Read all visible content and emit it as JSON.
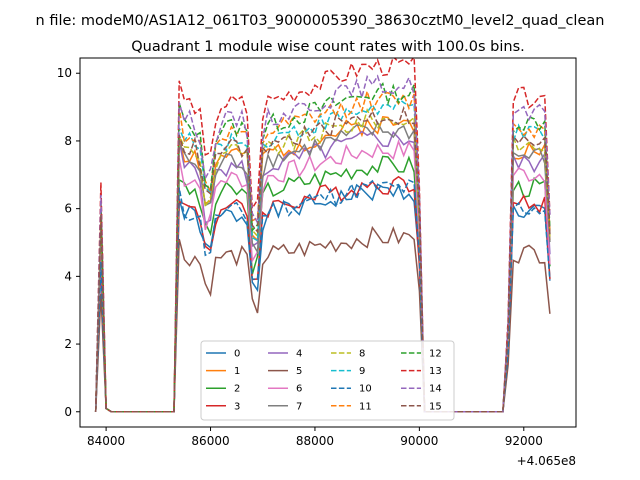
{
  "figure": {
    "suptitle": "n file: modeM0/AS1A12_061T03_9000005390_38630cztM0_level2_quad_clean",
    "offset_label": "+4.065e8"
  },
  "chart_data": {
    "type": "line",
    "title": "Quadrant 1 module wise count rates with 100.0s bins.",
    "xlabel": "",
    "ylabel": "",
    "xlim": [
      83500,
      93000
    ],
    "ylim": [
      -0.45,
      10.45
    ],
    "x_offset": 406500000,
    "x_ticks": [
      84000,
      86000,
      88000,
      90000,
      92000
    ],
    "y_ticks": [
      0,
      2,
      4,
      6,
      8,
      10
    ],
    "grid": false,
    "legend": {
      "placement": "lower-center",
      "columns": 4
    },
    "active_intervals": [
      [
        83850,
        85300
      ],
      [
        85400,
        90100
      ],
      [
        91650,
        92550
      ]
    ],
    "series": [
      {
        "name": "0",
        "style": "solid",
        "color": "#1f77b4",
        "level": 5.8,
        "seed": 1
      },
      {
        "name": "1",
        "style": "solid",
        "color": "#ff7f0e",
        "level": 7.6,
        "seed": 2
      },
      {
        "name": "2",
        "style": "solid",
        "color": "#2ca02c",
        "level": 6.5,
        "seed": 3
      },
      {
        "name": "3",
        "style": "solid",
        "color": "#d62728",
        "level": 6.0,
        "seed": 4
      },
      {
        "name": "4",
        "style": "solid",
        "color": "#9467bd",
        "level": 7.2,
        "seed": 5
      },
      {
        "name": "5",
        "style": "solid",
        "color": "#8c564b",
        "level": 4.6,
        "seed": 6
      },
      {
        "name": "6",
        "style": "solid",
        "color": "#e377c2",
        "level": 6.9,
        "seed": 7
      },
      {
        "name": "7",
        "style": "solid",
        "color": "#7f7f7f",
        "level": 7.4,
        "seed": 8
      },
      {
        "name": "8",
        "style": "dashed",
        "color": "#bcbd22",
        "level": 7.7,
        "seed": 9
      },
      {
        "name": "9",
        "style": "dashed",
        "color": "#17becf",
        "level": 8.0,
        "seed": 10
      },
      {
        "name": "10",
        "style": "dashed",
        "color": "#1f77b4",
        "level": 5.9,
        "seed": 11
      },
      {
        "name": "11",
        "style": "dashed",
        "color": "#ff7f0e",
        "level": 8.2,
        "seed": 12
      },
      {
        "name": "12",
        "style": "dashed",
        "color": "#2ca02c",
        "level": 8.4,
        "seed": 13
      },
      {
        "name": "13",
        "style": "dashed",
        "color": "#d62728",
        "level": 9.1,
        "seed": 14
      },
      {
        "name": "14",
        "style": "dashed",
        "color": "#9467bd",
        "level": 8.6,
        "seed": 15
      },
      {
        "name": "15",
        "style": "dashed",
        "color": "#8c564b",
        "level": 7.8,
        "seed": 16
      }
    ]
  }
}
